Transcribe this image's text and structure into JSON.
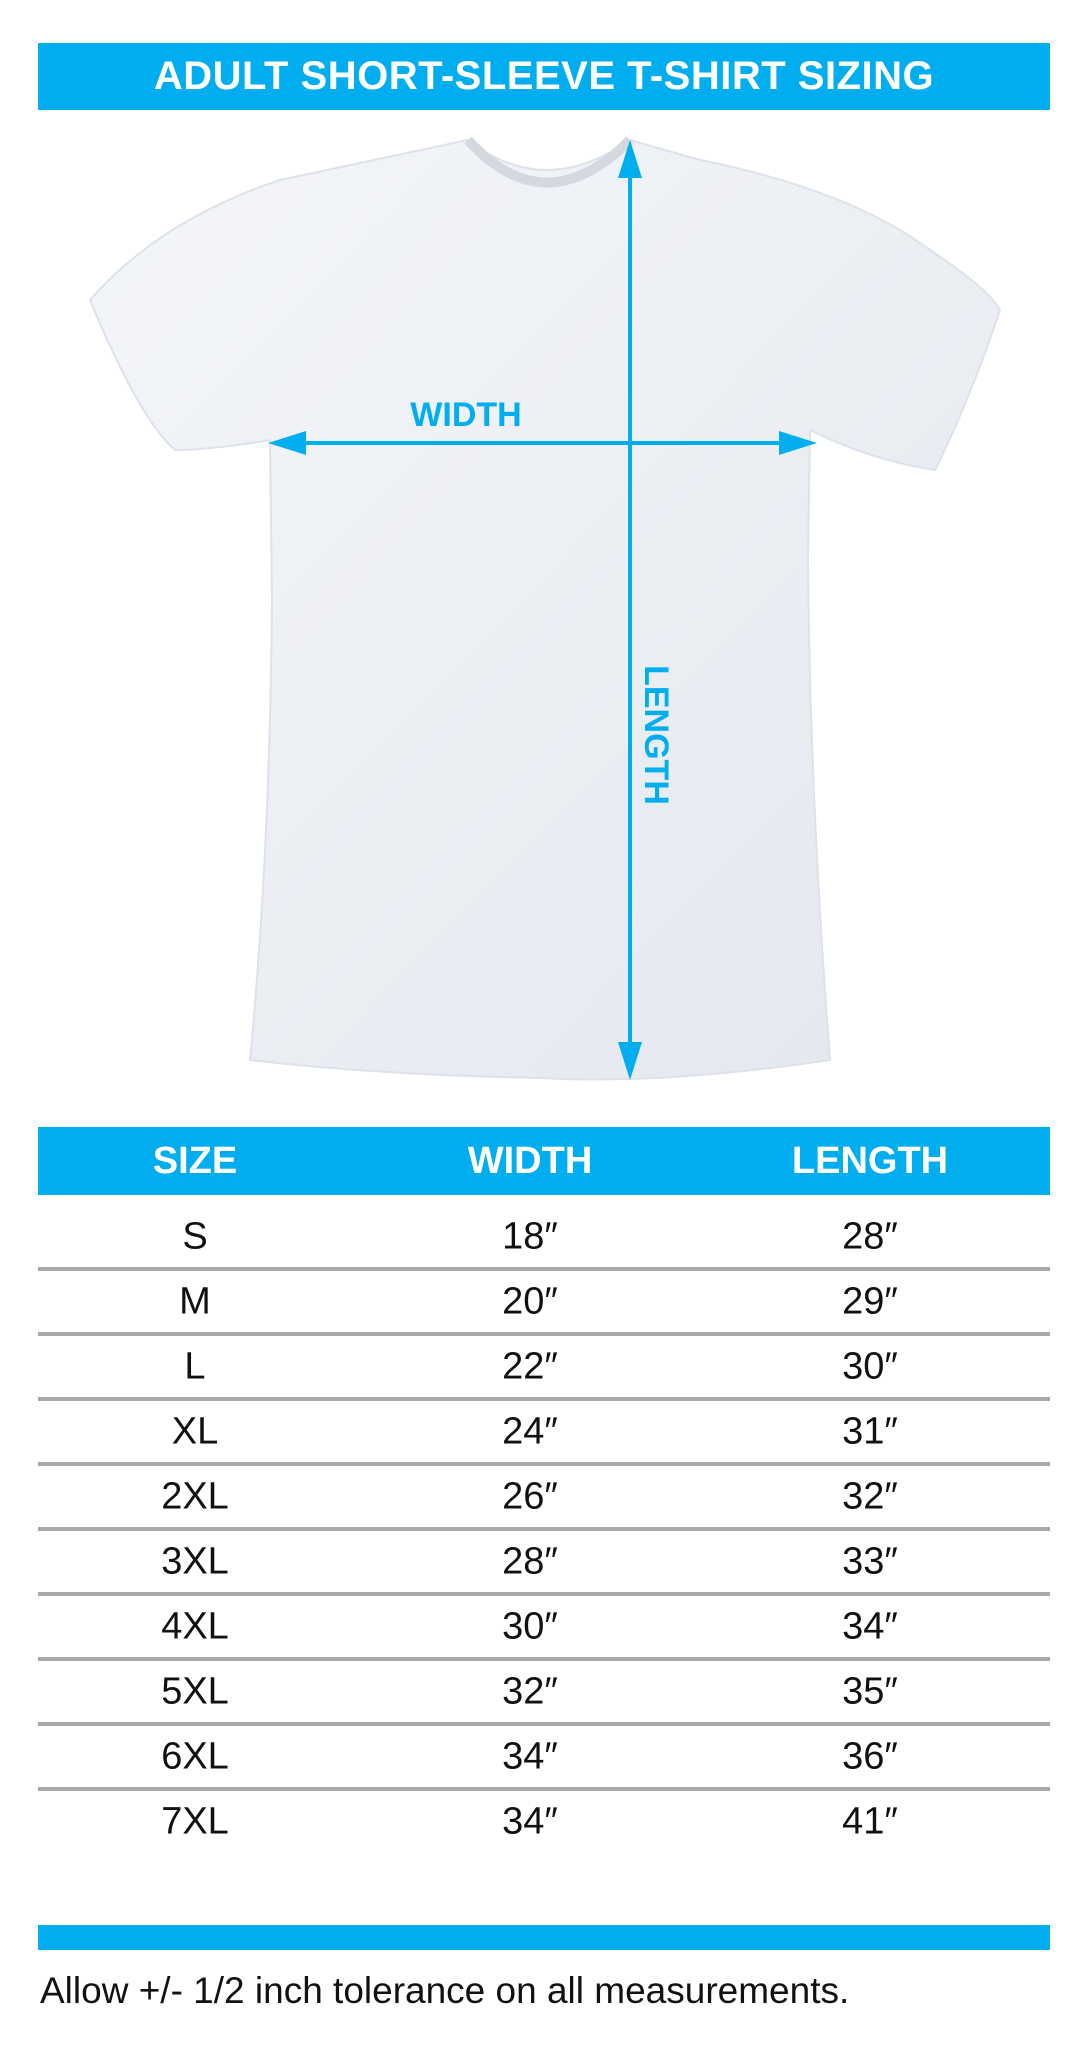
{
  "title": "ADULT SHORT-SLEEVE T-SHIRT SIZING",
  "diagram": {
    "width_label": "WIDTH",
    "length_label": "LENGTH",
    "accent_color": "#00aeef"
  },
  "table": {
    "headers": [
      "SIZE",
      "WIDTH",
      "LENGTH"
    ],
    "rows": [
      [
        "S",
        "18″",
        "28″"
      ],
      [
        "M",
        "20″",
        "29″"
      ],
      [
        "L",
        "22″",
        "30″"
      ],
      [
        "XL",
        "24″",
        "31″"
      ],
      [
        "2XL",
        "26″",
        "32″"
      ],
      [
        "3XL",
        "28″",
        "33″"
      ],
      [
        "4XL",
        "30″",
        "34″"
      ],
      [
        "5XL",
        "32″",
        "35″"
      ],
      [
        "6XL",
        "34″",
        "36″"
      ],
      [
        "7XL",
        "34″",
        "41″"
      ]
    ]
  },
  "footer": "Allow +/- 1/2 inch tolerance on all measurements."
}
